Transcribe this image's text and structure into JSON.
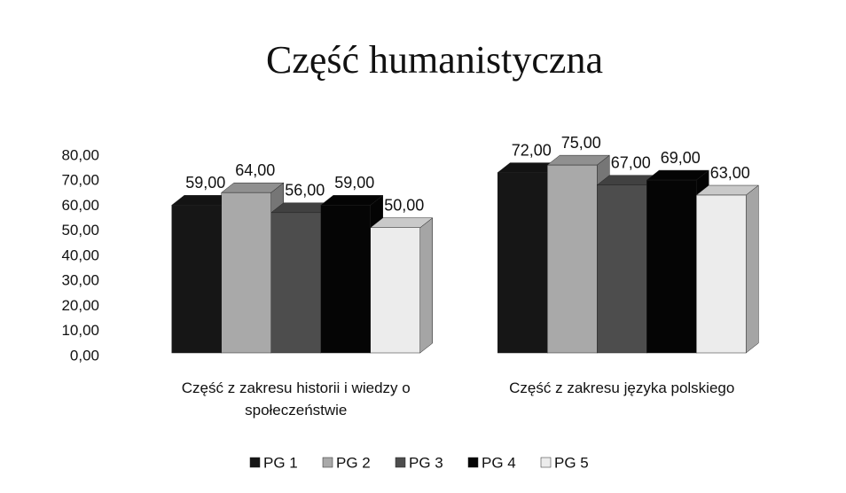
{
  "chart_data": {
    "type": "bar3d",
    "title": "Część humanistyczna",
    "categories": [
      "Część z zakresu historii i wiedzy o społeczeństwie",
      "Część z zakresu języka polskiego"
    ],
    "series": [
      {
        "name": "PG 1",
        "color": "#161616",
        "values": [
          59,
          72
        ],
        "value_labels": [
          "59,00",
          "72,00"
        ]
      },
      {
        "name": "PG 2",
        "color": "#a9a9a9",
        "values": [
          64,
          75
        ],
        "value_labels": [
          "64,00",
          "75,00"
        ]
      },
      {
        "name": "PG 3",
        "color": "#4d4d4d",
        "values": [
          56,
          67
        ],
        "value_labels": [
          "56,00",
          "67,00"
        ]
      },
      {
        "name": "PG 4",
        "color": "#050505",
        "values": [
          59,
          69
        ],
        "value_labels": [
          "59,00",
          "69,00"
        ]
      },
      {
        "name": "PG 5",
        "color": "#ececec",
        "values": [
          50,
          63
        ],
        "value_labels": [
          "50,00",
          "63,00"
        ]
      }
    ],
    "ylim": [
      0,
      80
    ],
    "yticks": [
      {
        "value": 0,
        "label": "0,00"
      },
      {
        "value": 10,
        "label": "10,00"
      },
      {
        "value": 20,
        "label": "20,00"
      },
      {
        "value": 30,
        "label": "30,00"
      },
      {
        "value": 40,
        "label": "40,00"
      },
      {
        "value": 50,
        "label": "50,00"
      },
      {
        "value": 60,
        "label": "60,00"
      },
      {
        "value": 70,
        "label": "70,00"
      },
      {
        "value": 80,
        "label": "80,00"
      }
    ],
    "grid": false,
    "legend": "bottom"
  }
}
